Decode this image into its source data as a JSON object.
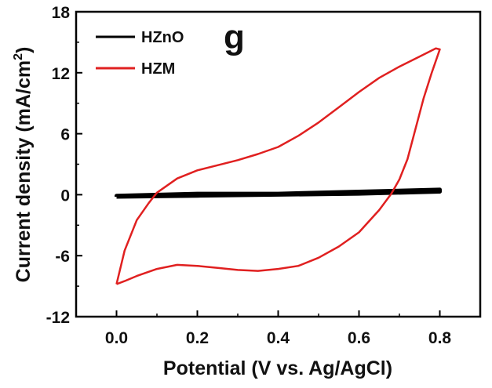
{
  "chart_data": {
    "type": "line",
    "panel_label": "g",
    "xlabel": "Potential (V vs. Ag/AgCl)",
    "ylabel": "Current density (mA/cm²)",
    "ylabel_parts": {
      "main": "Current density (mA/cm",
      "sup": "2",
      "end": ")"
    },
    "xlim": [
      -0.1,
      0.9
    ],
    "ylim": [
      -12,
      18
    ],
    "xticks": [
      "0.0",
      "0.2",
      "0.4",
      "0.6",
      "0.8"
    ],
    "xtick_values": [
      0.0,
      0.2,
      0.4,
      0.6,
      0.8
    ],
    "yticks": [
      "-12",
      "-6",
      "0",
      "6",
      "12",
      "18"
    ],
    "ytick_values": [
      -12,
      -6,
      0,
      6,
      12,
      18
    ],
    "legend_position": "top-left",
    "grid": false,
    "series": [
      {
        "name": "HZnO",
        "color": "#000000",
        "points": [
          [
            0.0,
            -0.2
          ],
          [
            0.2,
            -0.1
          ],
          [
            0.4,
            0.0
          ],
          [
            0.6,
            0.1
          ],
          [
            0.8,
            0.3
          ],
          [
            0.8,
            0.5
          ],
          [
            0.6,
            0.3
          ],
          [
            0.4,
            0.1
          ],
          [
            0.2,
            0.1
          ],
          [
            0.0,
            -0.1
          ],
          [
            0.0,
            -0.2
          ]
        ]
      },
      {
        "name": "HZM",
        "color": "#e02020",
        "points": [
          [
            0.0,
            -8.8
          ],
          [
            0.02,
            -5.5
          ],
          [
            0.05,
            -2.5
          ],
          [
            0.08,
            -0.8
          ],
          [
            0.1,
            0.2
          ],
          [
            0.15,
            1.6
          ],
          [
            0.2,
            2.4
          ],
          [
            0.25,
            2.9
          ],
          [
            0.3,
            3.4
          ],
          [
            0.35,
            4.0
          ],
          [
            0.4,
            4.7
          ],
          [
            0.45,
            5.8
          ],
          [
            0.5,
            7.1
          ],
          [
            0.55,
            8.6
          ],
          [
            0.6,
            10.1
          ],
          [
            0.65,
            11.5
          ],
          [
            0.7,
            12.6
          ],
          [
            0.75,
            13.6
          ],
          [
            0.79,
            14.4
          ],
          [
            0.8,
            14.3
          ],
          [
            0.78,
            12.0
          ],
          [
            0.76,
            9.5
          ],
          [
            0.74,
            6.5
          ],
          [
            0.72,
            3.5
          ],
          [
            0.7,
            1.5
          ],
          [
            0.68,
            0.1
          ],
          [
            0.65,
            -1.5
          ],
          [
            0.6,
            -3.7
          ],
          [
            0.55,
            -5.1
          ],
          [
            0.5,
            -6.2
          ],
          [
            0.45,
            -7.0
          ],
          [
            0.4,
            -7.3
          ],
          [
            0.35,
            -7.5
          ],
          [
            0.3,
            -7.4
          ],
          [
            0.25,
            -7.2
          ],
          [
            0.2,
            -7.0
          ],
          [
            0.15,
            -6.9
          ],
          [
            0.1,
            -7.3
          ],
          [
            0.05,
            -8.0
          ],
          [
            0.02,
            -8.5
          ],
          [
            0.0,
            -8.8
          ]
        ]
      }
    ]
  }
}
